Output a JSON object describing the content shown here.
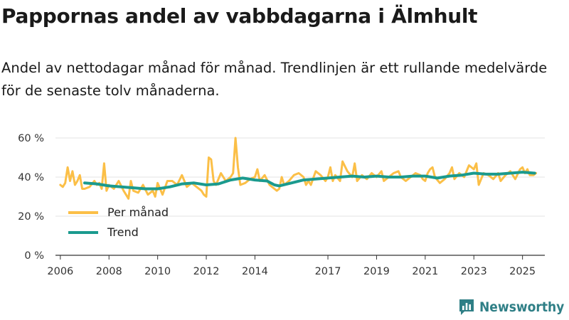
{
  "header": {
    "title": "Pappornas andel av vabbdagarna i Älmhult",
    "subtitle": "Andel av nettodagar månad för månad. Trendlinjen är ett rullande medelvärde för de senaste tolv månaderna."
  },
  "brand": {
    "name": "Newsworthy",
    "icon": "newsworthy-logo-icon"
  },
  "colors": {
    "monthly": "#fbbf47",
    "trend": "#1a9a8e",
    "grid": "#e3e3e3",
    "axis": "#333333"
  },
  "chart_data": {
    "type": "line",
    "title": "Pappornas andel av vabbdagarna i Älmhult",
    "xlabel": "",
    "ylabel": "",
    "xlim": [
      2005.8,
      2025.8
    ],
    "ylim": [
      0,
      60
    ],
    "grid": true,
    "legend_position": "middle-left",
    "y_ticks": [
      {
        "value": 0,
        "label": "0 %"
      },
      {
        "value": 20,
        "label": "20 %"
      },
      {
        "value": 40,
        "label": "40 %"
      },
      {
        "value": 60,
        "label": "60 %"
      }
    ],
    "x_ticks": [
      {
        "value": 2006,
        "label": "2006"
      },
      {
        "value": 2008,
        "label": "2008"
      },
      {
        "value": 2010,
        "label": "2010"
      },
      {
        "value": 2012,
        "label": "2012"
      },
      {
        "value": 2014,
        "label": "2014"
      },
      {
        "value": 2017,
        "label": "2017"
      },
      {
        "value": 2019,
        "label": "2019"
      },
      {
        "value": 2021,
        "label": "2021"
      },
      {
        "value": 2023,
        "label": "2023"
      },
      {
        "value": 2025,
        "label": "2025"
      }
    ],
    "series": [
      {
        "name": "Per månad",
        "color": "#fbbf47",
        "points": [
          [
            2006.0,
            36
          ],
          [
            2006.1,
            35
          ],
          [
            2006.2,
            37
          ],
          [
            2006.3,
            45
          ],
          [
            2006.4,
            38
          ],
          [
            2006.5,
            43
          ],
          [
            2006.6,
            36
          ],
          [
            2006.7,
            38
          ],
          [
            2006.8,
            41
          ],
          [
            2006.9,
            34
          ],
          [
            2007.0,
            34
          ],
          [
            2007.2,
            35
          ],
          [
            2007.4,
            38
          ],
          [
            2007.5,
            36
          ],
          [
            2007.6,
            37
          ],
          [
            2007.7,
            34
          ],
          [
            2007.8,
            47
          ],
          [
            2007.9,
            33
          ],
          [
            2008.0,
            36
          ],
          [
            2008.2,
            34
          ],
          [
            2008.4,
            38
          ],
          [
            2008.6,
            33
          ],
          [
            2008.8,
            29
          ],
          [
            2008.9,
            38
          ],
          [
            2009.0,
            33
          ],
          [
            2009.2,
            32
          ],
          [
            2009.4,
            36
          ],
          [
            2009.6,
            31
          ],
          [
            2009.8,
            33
          ],
          [
            2009.9,
            30
          ],
          [
            2010.0,
            37
          ],
          [
            2010.2,
            31
          ],
          [
            2010.4,
            38
          ],
          [
            2010.6,
            38
          ],
          [
            2010.8,
            36
          ],
          [
            2011.0,
            41
          ],
          [
            2011.2,
            35
          ],
          [
            2011.4,
            37
          ],
          [
            2011.6,
            35
          ],
          [
            2011.8,
            33
          ],
          [
            2011.9,
            31
          ],
          [
            2012.0,
            30
          ],
          [
            2012.1,
            50
          ],
          [
            2012.2,
            49
          ],
          [
            2012.3,
            38
          ],
          [
            2012.4,
            36
          ],
          [
            2012.6,
            42
          ],
          [
            2012.8,
            38
          ],
          [
            2013.0,
            40
          ],
          [
            2013.1,
            42
          ],
          [
            2013.2,
            60
          ],
          [
            2013.3,
            45
          ],
          [
            2013.4,
            36
          ],
          [
            2013.6,
            37
          ],
          [
            2013.8,
            39
          ],
          [
            2014.0,
            40
          ],
          [
            2014.1,
            44
          ],
          [
            2014.2,
            38
          ],
          [
            2014.4,
            41
          ],
          [
            2014.6,
            36
          ],
          [
            2014.8,
            34
          ],
          [
            2014.9,
            33
          ],
          [
            2015.0,
            34
          ],
          [
            2015.1,
            40
          ],
          [
            2015.2,
            36
          ],
          [
            2015.4,
            38
          ],
          [
            2015.6,
            41
          ],
          [
            2015.8,
            42
          ],
          [
            2016.0,
            40
          ],
          [
            2016.1,
            36
          ],
          [
            2016.2,
            38
          ],
          [
            2016.3,
            36
          ],
          [
            2016.5,
            43
          ],
          [
            2016.7,
            41
          ],
          [
            2016.9,
            38
          ],
          [
            2017.0,
            40
          ],
          [
            2017.1,
            45
          ],
          [
            2017.2,
            38
          ],
          [
            2017.3,
            41
          ],
          [
            2017.5,
            38
          ],
          [
            2017.6,
            48
          ],
          [
            2017.8,
            43
          ],
          [
            2018.0,
            40
          ],
          [
            2018.1,
            47
          ],
          [
            2018.2,
            38
          ],
          [
            2018.4,
            41
          ],
          [
            2018.6,
            39
          ],
          [
            2018.8,
            42
          ],
          [
            2019.0,
            40
          ],
          [
            2019.2,
            43
          ],
          [
            2019.3,
            38
          ],
          [
            2019.5,
            40
          ],
          [
            2019.7,
            42
          ],
          [
            2019.9,
            43
          ],
          [
            2020.0,
            40
          ],
          [
            2020.2,
            38
          ],
          [
            2020.4,
            40
          ],
          [
            2020.6,
            42
          ],
          [
            2020.8,
            41
          ],
          [
            2020.9,
            39
          ],
          [
            2021.0,
            38
          ],
          [
            2021.1,
            42
          ],
          [
            2021.2,
            44
          ],
          [
            2021.3,
            45
          ],
          [
            2021.4,
            40
          ],
          [
            2021.6,
            37
          ],
          [
            2021.8,
            39
          ],
          [
            2022.0,
            42
          ],
          [
            2022.1,
            45
          ],
          [
            2022.2,
            39
          ],
          [
            2022.4,
            42
          ],
          [
            2022.6,
            40
          ],
          [
            2022.8,
            46
          ],
          [
            2023.0,
            44
          ],
          [
            2023.1,
            47
          ],
          [
            2023.2,
            36
          ],
          [
            2023.4,
            42
          ],
          [
            2023.6,
            41
          ],
          [
            2023.8,
            39
          ],
          [
            2024.0,
            42
          ],
          [
            2024.1,
            38
          ],
          [
            2024.3,
            41
          ],
          [
            2024.5,
            43
          ],
          [
            2024.7,
            39
          ],
          [
            2024.9,
            44
          ],
          [
            2025.0,
            45
          ],
          [
            2025.1,
            42
          ],
          [
            2025.2,
            44
          ],
          [
            2025.3,
            41
          ],
          [
            2025.45,
            41
          ],
          [
            2025.55,
            42
          ]
        ]
      },
      {
        "name": "Trend",
        "color": "#1a9a8e",
        "points": [
          [
            2007.0,
            37
          ],
          [
            2007.5,
            36.5
          ],
          [
            2008.0,
            35.5
          ],
          [
            2008.5,
            35
          ],
          [
            2009.0,
            34.5
          ],
          [
            2009.5,
            34
          ],
          [
            2010.0,
            34
          ],
          [
            2010.5,
            35
          ],
          [
            2011.0,
            36.5
          ],
          [
            2011.5,
            37
          ],
          [
            2012.0,
            36
          ],
          [
            2012.5,
            36.5
          ],
          [
            2013.0,
            38.5
          ],
          [
            2013.5,
            39.5
          ],
          [
            2014.0,
            38.5
          ],
          [
            2014.5,
            38
          ],
          [
            2014.8,
            36
          ],
          [
            2015.0,
            35.5
          ],
          [
            2015.5,
            37
          ],
          [
            2016.0,
            38.5
          ],
          [
            2016.5,
            39
          ],
          [
            2017.0,
            39.5
          ],
          [
            2017.5,
            40
          ],
          [
            2018.0,
            40.5
          ],
          [
            2018.5,
            40
          ],
          [
            2019.0,
            40.5
          ],
          [
            2019.5,
            40
          ],
          [
            2020.0,
            40
          ],
          [
            2020.5,
            40.5
          ],
          [
            2021.0,
            40.5
          ],
          [
            2021.5,
            39.5
          ],
          [
            2022.0,
            40.5
          ],
          [
            2022.5,
            41
          ],
          [
            2023.0,
            42
          ],
          [
            2023.5,
            41.5
          ],
          [
            2024.0,
            41.5
          ],
          [
            2024.5,
            42
          ],
          [
            2025.0,
            42.5
          ],
          [
            2025.5,
            42
          ]
        ]
      }
    ]
  }
}
